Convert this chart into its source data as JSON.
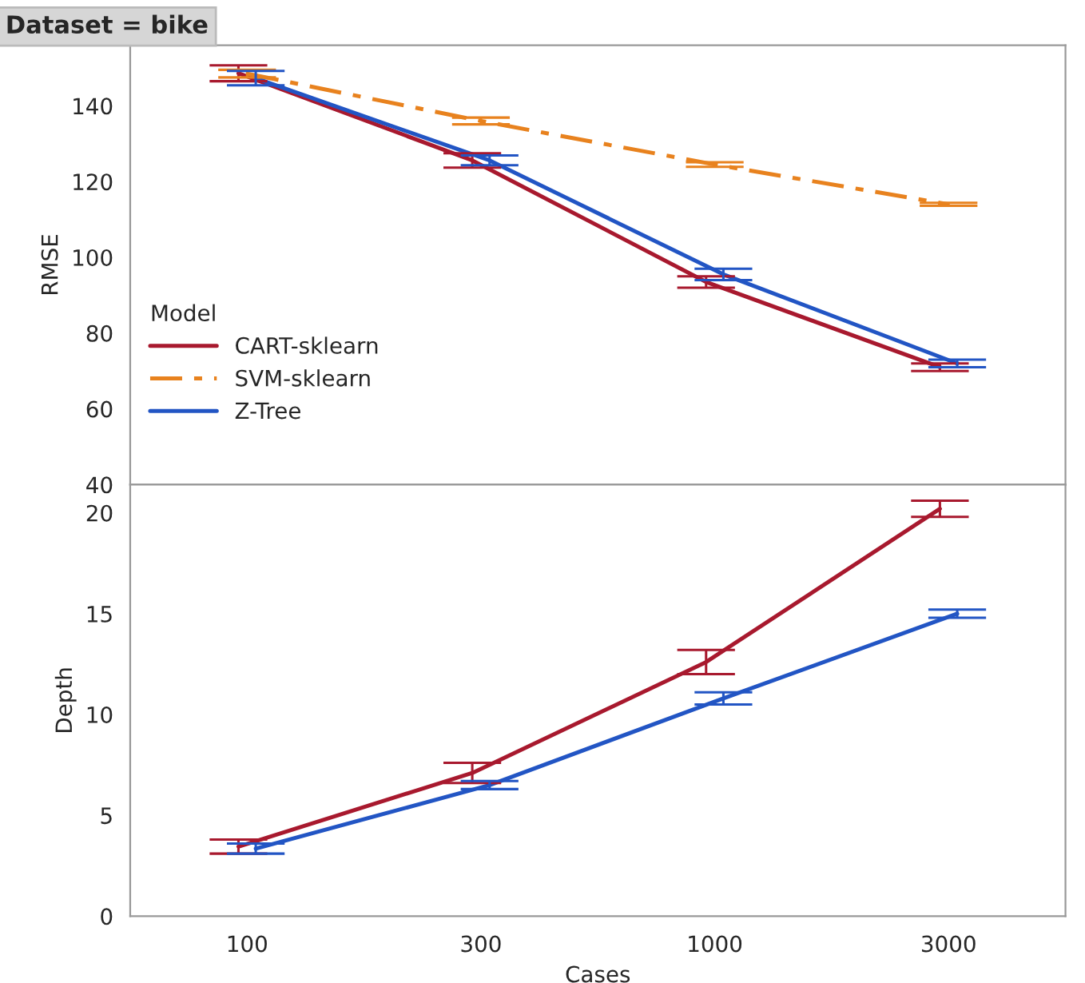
{
  "chart_data": [
    {
      "type": "line",
      "title": "Dataset = bike",
      "ylabel": "RMSE",
      "categories": [
        "100",
        "300",
        "1000",
        "3000"
      ],
      "ylim": [
        40,
        156
      ],
      "yticks": [
        40,
        60,
        80,
        100,
        120,
        140
      ],
      "tick_labels": "y",
      "grid": false,
      "legend": "center left",
      "legend_title": "Model",
      "marker": "none",
      "series": [
        {
          "name": "CART-sklearn",
          "color": "#a8192e",
          "line_style": "solid",
          "values": [
            148.6,
            125.6,
            93.5,
            71
          ],
          "errors": [
            2.1,
            1.9,
            1.5,
            1
          ]
        },
        {
          "name": "SVM-sklearn",
          "color": "#e8821e",
          "line_style": "dashdot",
          "values": [
            148.5,
            136,
            124.5,
            114
          ],
          "errors": [
            1,
            0.9,
            0.6,
            0.4
          ]
        },
        {
          "name": "Z-Tree",
          "color": "#2255c4",
          "line_style": "solid",
          "values": [
            147.3,
            125.6,
            95.5,
            72
          ],
          "errors": [
            1.9,
            1.3,
            1.5,
            1
          ]
        }
      ]
    },
    {
      "type": "line",
      "xlabel": "Cases",
      "ylabel": "Depth",
      "categories": [
        "100",
        "300",
        "1000",
        "3000"
      ],
      "ylim": [
        0,
        21.4
      ],
      "yticks": [
        0,
        5,
        10,
        15,
        20
      ],
      "grid": false,
      "marker": "none",
      "series": [
        {
          "color": "#a8192e",
          "line_style": "solid",
          "values": [
            3.45,
            7.1,
            12.6,
            20.2
          ],
          "errors": [
            0.35,
            0.5,
            0.6,
            0.4
          ]
        },
        {
          "color": "#2255c4",
          "line_style": "solid",
          "values": [
            3.35,
            6.5,
            10.8,
            15.0
          ],
          "errors": [
            0.25,
            0.2,
            0.3,
            0.2
          ]
        }
      ]
    }
  ]
}
